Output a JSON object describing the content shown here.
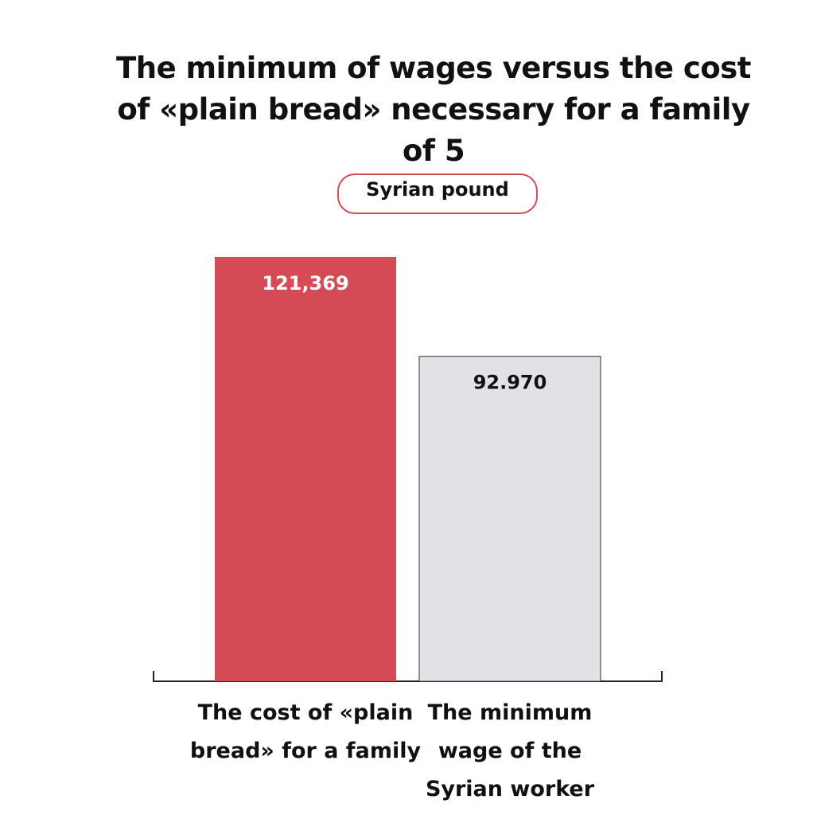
{
  "chart_data": {
    "type": "bar",
    "title": "The minimum of wages versus the cost of «plain bread» necessary for a family of 5",
    "subtitle": "Syrian pound",
    "categories": [
      "The cost of  «plain bread» for a family",
      "The minimum wage of the Syrian worker"
    ],
    "values": [
      121369,
      92970
    ],
    "value_labels": [
      "121,369",
      "92.970"
    ],
    "colors": [
      "#d44a55",
      "#e1e2e6"
    ]
  }
}
